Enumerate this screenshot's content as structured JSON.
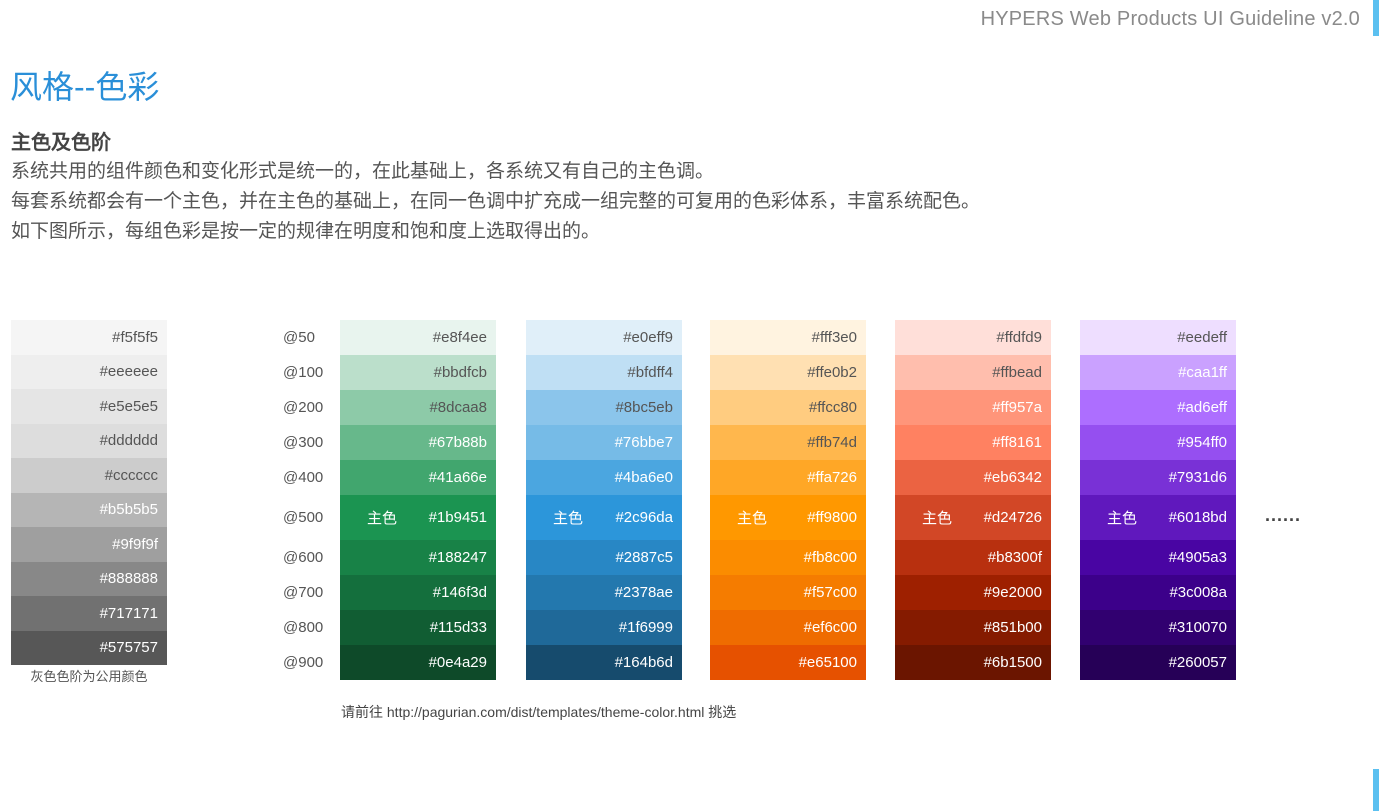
{
  "header": {
    "title": "HYPERS Web Products UI Guideline v2.0"
  },
  "page_title": "风格--色彩",
  "section": {
    "heading": "主色及色阶",
    "lines": [
      "系统共用的组件颜色和变化形式是统一的，在此基础上，各系统又有自己的主色调。",
      "每套系统都会有一个主色，并在主色的基础上，在同一色调中扩充成一组完整的可复用的色彩体系，丰富系统配色。",
      "如下图所示，每组色彩是按一定的规律在明度和饱和度上选取得出的。"
    ]
  },
  "gray_scale": {
    "swatches": [
      "#f5f5f5",
      "#eeeeee",
      "#e5e5e5",
      "#dddddd",
      "#cccccc",
      "#b5b5b5",
      "#9f9f9f",
      "#888888",
      "#717171",
      "#575757"
    ],
    "caption": "灰色色阶为公用颜色"
  },
  "levels": [
    "@50",
    "@100",
    "@200",
    "@300",
    "@400",
    "@500",
    "@600",
    "@700",
    "@800",
    "@900"
  ],
  "main_color_label": "主色",
  "palettes": [
    {
      "name": "green",
      "colors": [
        "#e8f4ee",
        "#bbdfcb",
        "#8dcaa8",
        "#67b88b",
        "#41a66e",
        "#1b9451",
        "#188247",
        "#146f3d",
        "#115d33",
        "#0e4a29"
      ]
    },
    {
      "name": "blue",
      "colors": [
        "#e0eff9",
        "#bfdff4",
        "#8bc5eb",
        "#76bbe7",
        "#4ba6e0",
        "#2c96da",
        "#2887c5",
        "#2378ae",
        "#1f6999",
        "#164b6d"
      ]
    },
    {
      "name": "orange",
      "colors": [
        "#fff3e0",
        "#ffe0b2",
        "#ffcc80",
        "#ffb74d",
        "#ffa726",
        "#ff9800",
        "#fb8c00",
        "#f57c00",
        "#ef6c00",
        "#e65100"
      ]
    },
    {
      "name": "red",
      "colors": [
        "#ffdfd9",
        "#ffbead",
        "#ff957a",
        "#ff8161",
        "#eb6342",
        "#d24726",
        "#b8300f",
        "#9e2000",
        "#851b00",
        "#6b1500"
      ]
    },
    {
      "name": "purple",
      "colors": [
        "#eedeff",
        "#caa1ff",
        "#ad6eff",
        "#954ff0",
        "#7931d6",
        "#6018bd",
        "#4905a3",
        "#3c008a",
        "#310070",
        "#260057"
      ]
    }
  ],
  "more": "......",
  "footer_note": "请前往 http://pagurian.com/dist/templates/theme-color.html 挑选"
}
